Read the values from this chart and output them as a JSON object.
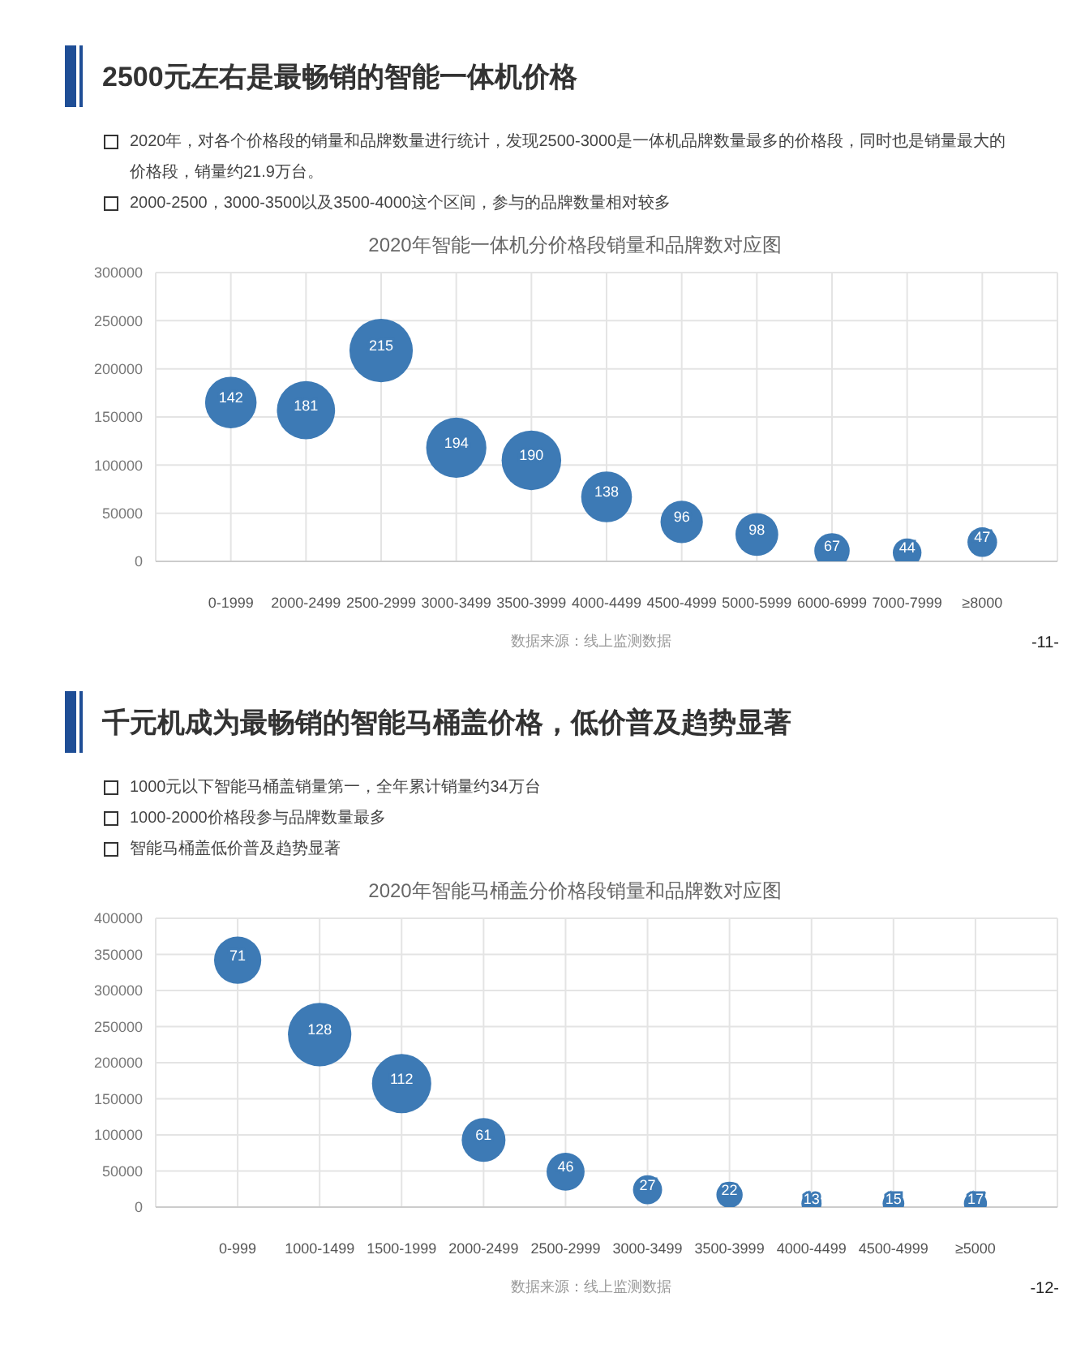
{
  "chart_data": [
    {
      "type": "bubble",
      "title": "2500元左右是最畅销的智能一体机价格",
      "subtitle": "2020年智能一体机分价格段销量和品牌数对应图",
      "annotations": [
        "2020年，对各个价格段的销量和品牌数量进行统计，发现2500-3000是一体机品牌数量最多的价格段，同时也是销量最大的价格段，销量约21.9万台。",
        "2000-2500，3000-3500以及3500-4000这个区间，参与的品牌数量相对较多",
        "数据来源：线上监测数据",
        "-11-"
      ],
      "categories": [
        "0-1999",
        "2000-2499",
        "2500-2999",
        "3000-3499",
        "3500-3999",
        "4000-4499",
        "4500-4999",
        "5000-5999",
        "6000-6999",
        "7000-7999",
        "≥8000"
      ],
      "values": [
        165000,
        157000,
        219000,
        118000,
        105000,
        67000,
        41000,
        28000,
        11000,
        9000,
        20000
      ],
      "sizes": [
        142,
        181,
        215,
        194,
        190,
        138,
        96,
        98,
        67,
        44,
        47
      ],
      "value_labels": [
        "142",
        "181",
        "215",
        "194",
        "190",
        "138",
        "96",
        "98",
        "67",
        "44",
        "47"
      ],
      "color": "#3d7ab5",
      "ylim": [
        0,
        300000
      ],
      "yticks": [
        0,
        50000,
        100000,
        150000,
        200000,
        250000,
        300000
      ],
      "grid": true
    },
    {
      "type": "bubble",
      "title": "千元机成为最畅销的智能马桶盖价格，低价普及趋势显著",
      "subtitle": "2020年智能马桶盖分价格段销量和品牌数对应图",
      "annotations": [
        "1000元以下智能马桶盖销量第一，全年累计销量约34万台",
        "1000-2000价格段参与品牌数量最多",
        "智能马桶盖低价普及趋势显著",
        "数据来源：线上监测数据",
        "-12-"
      ],
      "categories": [
        "0-999",
        "1000-1499",
        "1500-1999",
        "2000-2499",
        "2500-2999",
        "3000-3499",
        "3500-3999",
        "4000-4499",
        "4500-4999",
        "≥5000"
      ],
      "values": [
        342000,
        239000,
        171000,
        93000,
        49000,
        24000,
        17000,
        5000,
        5000,
        5000
      ],
      "sizes": [
        71,
        128,
        112,
        61,
        46,
        27,
        22,
        13,
        15,
        17
      ],
      "value_labels": [
        "71",
        "128",
        "112",
        "61",
        "46",
        "27",
        "22",
        "13",
        "15",
        "17"
      ],
      "color": "#3d7ab5",
      "ylim": [
        0,
        400000
      ],
      "yticks": [
        0,
        50000,
        100000,
        150000,
        200000,
        250000,
        300000,
        350000,
        400000
      ],
      "grid": true
    }
  ]
}
